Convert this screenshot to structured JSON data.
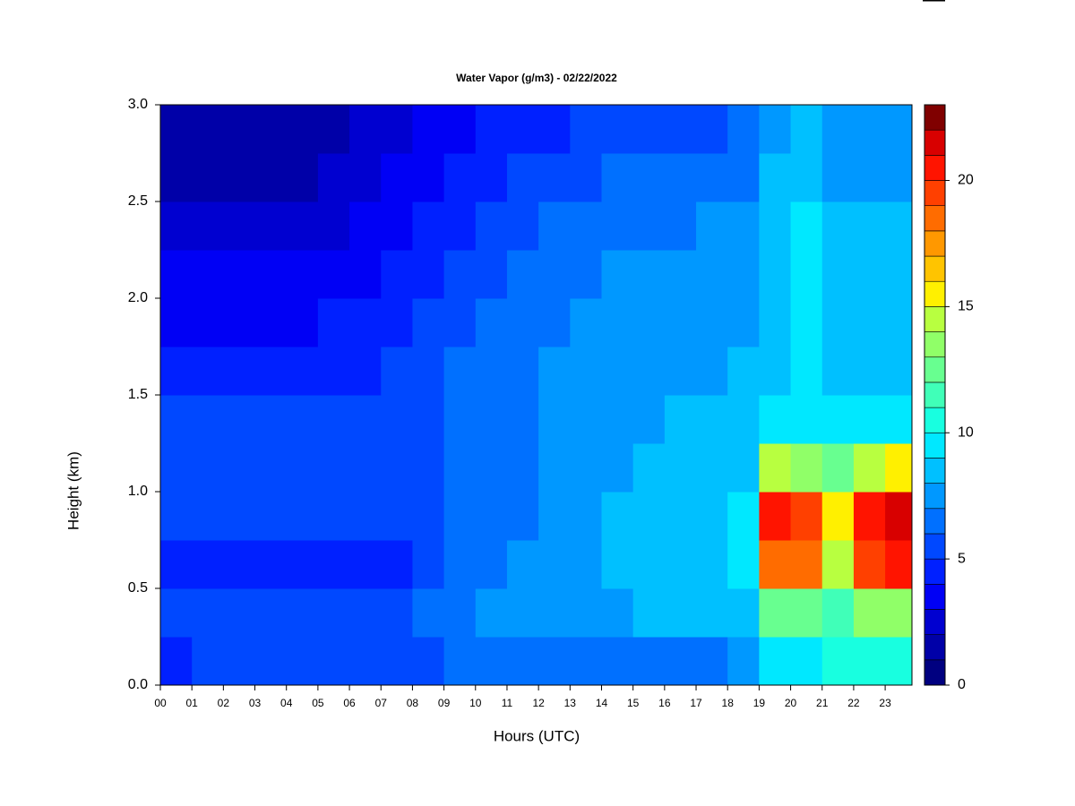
{
  "chart_data": {
    "type": "heatmap",
    "title": "Water Vapor (g/m3) - 02/22/2022",
    "x_label": "Hours (UTC)",
    "y_label": "Height (km)",
    "xlim": [
      0,
      23.85
    ],
    "ylim": [
      0,
      3
    ],
    "xticks": [
      {
        "value": 0,
        "label": "00"
      },
      {
        "value": 1,
        "label": "01"
      },
      {
        "value": 2,
        "label": "02"
      },
      {
        "value": 3,
        "label": "03"
      },
      {
        "value": 4,
        "label": "04"
      },
      {
        "value": 5,
        "label": "05"
      },
      {
        "value": 6,
        "label": "06"
      },
      {
        "value": 7,
        "label": "07"
      },
      {
        "value": 8,
        "label": "08"
      },
      {
        "value": 9,
        "label": "09"
      },
      {
        "value": 10,
        "label": "10"
      },
      {
        "value": 11,
        "label": "11"
      },
      {
        "value": 12,
        "label": "12"
      },
      {
        "value": 13,
        "label": "13"
      },
      {
        "value": 14,
        "label": "14"
      },
      {
        "value": 15,
        "label": "15"
      },
      {
        "value": 16,
        "label": "16"
      },
      {
        "value": 17,
        "label": "17"
      },
      {
        "value": 18,
        "label": "18"
      },
      {
        "value": 19,
        "label": "19"
      },
      {
        "value": 20,
        "label": "20"
      },
      {
        "value": 21,
        "label": "21"
      },
      {
        "value": 22,
        "label": "22"
      },
      {
        "value": 23,
        "label": "23"
      }
    ],
    "yticks": [
      {
        "value": 0,
        "label": "0.0"
      },
      {
        "value": 0.5,
        "label": "0.5"
      },
      {
        "value": 1,
        "label": "1.0"
      },
      {
        "value": 1.5,
        "label": "1.5"
      },
      {
        "value": 2,
        "label": "2.0"
      },
      {
        "value": 2.5,
        "label": "2.5"
      },
      {
        "value": 3,
        "label": "3.0"
      }
    ],
    "x": [
      0,
      1,
      2,
      3,
      4,
      5,
      6,
      7,
      8,
      9,
      10,
      11,
      12,
      13,
      14,
      15,
      16,
      17,
      18,
      19,
      20,
      21,
      22,
      23
    ],
    "y": [
      0,
      0.25,
      0.5,
      0.75,
      1,
      1.25,
      1.5,
      1.75,
      2,
      2.25,
      2.5,
      2.75
    ],
    "z": [
      [
        4.5,
        5,
        5.5,
        5.5,
        5.5,
        5.5,
        5.5,
        5.5,
        5.5,
        6,
        6,
        6,
        6.5,
        6.5,
        6.5,
        6.5,
        6.5,
        6.5,
        7,
        9,
        9.5,
        10,
        10.5,
        10.5
      ],
      [
        5.5,
        5.5,
        5.5,
        5.5,
        5.5,
        5.5,
        5.5,
        5.5,
        6,
        6.5,
        7,
        7,
        7.5,
        7.5,
        7.5,
        8,
        8,
        8,
        8.5,
        12,
        12,
        11,
        13,
        13
      ],
      [
        4.5,
        4.5,
        4.5,
        4.5,
        4.5,
        4.5,
        4.5,
        4.5,
        5.5,
        6,
        6.5,
        7,
        7.5,
        7.5,
        8,
        8,
        8,
        8.5,
        9,
        18,
        18,
        14,
        19,
        20
      ],
      [
        5,
        5,
        5,
        5,
        5,
        5,
        5,
        5,
        5.5,
        6,
        6,
        6.5,
        7,
        7.5,
        8,
        8,
        8,
        8.5,
        9,
        20,
        19,
        15,
        20,
        21
      ],
      [
        5.5,
        5.5,
        5.5,
        5.5,
        5.5,
        5.5,
        5.5,
        5.5,
        5.5,
        6,
        6,
        6.5,
        7,
        7.5,
        7.5,
        8,
        8,
        8,
        8.5,
        14,
        13,
        12,
        14,
        15
      ],
      [
        5,
        5,
        5,
        5,
        5,
        5,
        5,
        5,
        5.5,
        6,
        6,
        6.5,
        7,
        7,
        7.5,
        7.5,
        8,
        8,
        8,
        9,
        9,
        9,
        9.5,
        9.5
      ],
      [
        4,
        4,
        4,
        4,
        4.5,
        4.5,
        4.5,
        5,
        5.5,
        6,
        6,
        6.5,
        7,
        7,
        7.5,
        7.5,
        7.5,
        7.5,
        8,
        8.5,
        9,
        8.5,
        8.5,
        8.5
      ],
      [
        3.5,
        3.5,
        3.5,
        3.5,
        3.5,
        4,
        4,
        4.5,
        5,
        5.5,
        6,
        6.5,
        6.5,
        7,
        7,
        7,
        7,
        7.5,
        7.5,
        8.5,
        9,
        8,
        8.5,
        8
      ],
      [
        3,
        3,
        3,
        3,
        3,
        3,
        3.5,
        4,
        4.5,
        5,
        5.5,
        6,
        6.5,
        6.5,
        7,
        7,
        7,
        7,
        7.5,
        8.5,
        9,
        8,
        8,
        8
      ],
      [
        2.5,
        2.5,
        2,
        2,
        2,
        2.5,
        3,
        3.5,
        4,
        4.5,
        5,
        5.5,
        6,
        6,
        6.5,
        6.5,
        6.5,
        7,
        7,
        8,
        9,
        8,
        8,
        8
      ],
      [
        1.5,
        1.5,
        1.5,
        1.5,
        1.5,
        2,
        2.5,
        3,
        3.5,
        4,
        4.5,
        5,
        5.5,
        5.5,
        6,
        6,
        6,
        6,
        6.5,
        8,
        8.5,
        7.5,
        7.5,
        7.5
      ],
      [
        1,
        1,
        1,
        1,
        1,
        1.5,
        2,
        2.5,
        3,
        3.5,
        4,
        4,
        4.5,
        5,
        5,
        5.5,
        5.5,
        5.5,
        6,
        7.5,
        8,
        7,
        7,
        7
      ]
    ],
    "levels": [
      0,
      1,
      2,
      3,
      4,
      5,
      6,
      7,
      8,
      9,
      10,
      11,
      12,
      13,
      14,
      15,
      16,
      17,
      18,
      19,
      20,
      21,
      22,
      23
    ],
    "colors": [
      "#000080",
      "#0000a8",
      "#0000d0",
      "#0000f5",
      "#0020ff",
      "#0048ff",
      "#0070ff",
      "#0098ff",
      "#00c0ff",
      "#00e8ff",
      "#18ffe0",
      "#40ffb8",
      "#68ff90",
      "#90ff68",
      "#b8ff40",
      "#fff000",
      "#ffc400",
      "#ff9800",
      "#ff6c00",
      "#ff4000",
      "#ff1400",
      "#d80000",
      "#800000"
    ],
    "zticks": [
      0,
      5,
      10,
      15,
      20
    ]
  }
}
